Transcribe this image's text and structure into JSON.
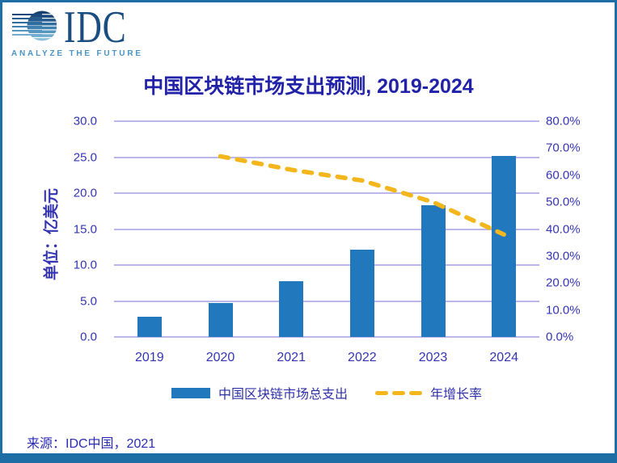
{
  "logo": {
    "brand": "IDC",
    "tagline": "ANALYZE THE FUTURE"
  },
  "source": "来源：IDC中国，2021",
  "chart_data": {
    "type": "bar+line",
    "title": "中国区块链市场支出预测, 2019-2024",
    "categories": [
      "2019",
      "2020",
      "2021",
      "2022",
      "2023",
      "2024"
    ],
    "series": [
      {
        "name": "中国区块链市场总支出",
        "type": "bar",
        "axis": "left",
        "unit": "亿美元",
        "values": [
          2.8,
          4.7,
          7.7,
          12.1,
          18.3,
          25.2
        ]
      },
      {
        "name": "年增长率",
        "type": "line",
        "axis": "right",
        "unit": "%",
        "line_style": "dashed",
        "values": [
          null,
          67.0,
          62.0,
          58.0,
          50.0,
          38.0
        ]
      }
    ],
    "left_axis": {
      "title": "单位：亿美元",
      "min": 0,
      "max": 30,
      "ticks": [
        "30.0",
        "25.0",
        "20.0",
        "15.0",
        "10.0",
        "5.0",
        "0.0"
      ]
    },
    "right_axis": {
      "min": 0,
      "max": 80,
      "ticks": [
        "80.0%",
        "70.0%",
        "60.0%",
        "50.0%",
        "40.0%",
        "30.0%",
        "20.0%",
        "10.0%",
        "0.0%"
      ]
    },
    "grid": true,
    "legend_position": "bottom",
    "colors": {
      "bar": "#2278BD",
      "line": "#F3B71D",
      "gridline": "#BCB7EB",
      "tick_text": "#3434B2",
      "title_text": "#2222A8",
      "legend_text": "#3030A8",
      "source_text": "#2B2BB2",
      "border": "#1F6DA5",
      "logo_brand": "#1B4E80",
      "logo_tagline": "#4C94C4"
    }
  }
}
